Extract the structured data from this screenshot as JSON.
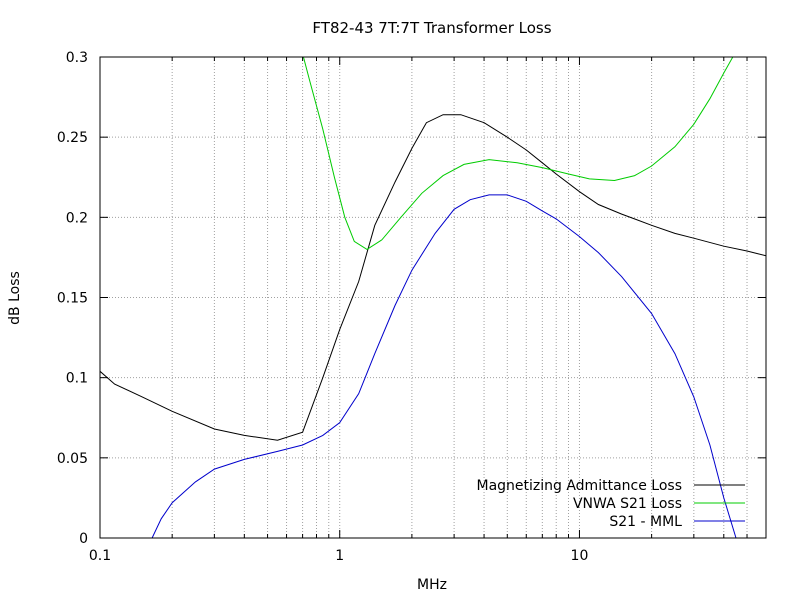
{
  "chart_data": {
    "type": "line",
    "title": "FT82-43 7T:7T Transformer Loss",
    "xlabel": "MHz",
    "ylabel": "dB Loss",
    "xscale": "log",
    "xlim": [
      0.1,
      60
    ],
    "ylim": [
      0,
      0.3
    ],
    "grid": true,
    "legend_position": "bottom-right",
    "x_ticks": [
      {
        "value": 0.1,
        "label": "0.1"
      },
      {
        "value": 1,
        "label": "1"
      },
      {
        "value": 10,
        "label": "10"
      }
    ],
    "y_ticks": [
      {
        "value": 0,
        "label": "0"
      },
      {
        "value": 0.05,
        "label": "0.05"
      },
      {
        "value": 0.1,
        "label": "0.1"
      },
      {
        "value": 0.15,
        "label": "0.15"
      },
      {
        "value": 0.2,
        "label": "0.2"
      },
      {
        "value": 0.25,
        "label": "0.25"
      },
      {
        "value": 0.3,
        "label": "0.3"
      }
    ],
    "series": [
      {
        "name": "Magnetizing Admittance Loss",
        "color": "#000000",
        "points": [
          [
            0.1,
            0.104
          ],
          [
            0.115,
            0.096
          ],
          [
            0.15,
            0.088
          ],
          [
            0.2,
            0.079
          ],
          [
            0.3,
            0.068
          ],
          [
            0.4,
            0.064
          ],
          [
            0.55,
            0.061
          ],
          [
            0.7,
            0.066
          ],
          [
            0.85,
            0.1
          ],
          [
            1.0,
            0.13
          ],
          [
            1.2,
            0.16
          ],
          [
            1.4,
            0.195
          ],
          [
            1.7,
            0.222
          ],
          [
            2.0,
            0.243
          ],
          [
            2.3,
            0.259
          ],
          [
            2.7,
            0.264
          ],
          [
            3.2,
            0.264
          ],
          [
            4.0,
            0.259
          ],
          [
            5.0,
            0.25
          ],
          [
            6.0,
            0.242
          ],
          [
            7.0,
            0.234
          ],
          [
            8.0,
            0.227
          ],
          [
            10.0,
            0.216
          ],
          [
            12.0,
            0.208
          ],
          [
            15.0,
            0.202
          ],
          [
            20.0,
            0.195
          ],
          [
            25.0,
            0.19
          ],
          [
            30.0,
            0.187
          ],
          [
            40.0,
            0.182
          ],
          [
            50.0,
            0.179
          ],
          [
            60.0,
            0.176
          ]
        ]
      },
      {
        "name": "VNWA S21 Loss",
        "color": "#00cc00",
        "points": [
          [
            0.7,
            0.302
          ],
          [
            0.75,
            0.285
          ],
          [
            0.85,
            0.255
          ],
          [
            0.95,
            0.225
          ],
          [
            1.05,
            0.2
          ],
          [
            1.15,
            0.185
          ],
          [
            1.3,
            0.18
          ],
          [
            1.5,
            0.186
          ],
          [
            1.8,
            0.2
          ],
          [
            2.2,
            0.215
          ],
          [
            2.7,
            0.226
          ],
          [
            3.3,
            0.233
          ],
          [
            4.2,
            0.236
          ],
          [
            5.5,
            0.234
          ],
          [
            7.0,
            0.231
          ],
          [
            9.0,
            0.227
          ],
          [
            11.0,
            0.224
          ],
          [
            14.0,
            0.223
          ],
          [
            17.0,
            0.226
          ],
          [
            20.0,
            0.232
          ],
          [
            25.0,
            0.244
          ],
          [
            30.0,
            0.258
          ],
          [
            35.0,
            0.274
          ],
          [
            40.0,
            0.29
          ],
          [
            44.0,
            0.301
          ]
        ]
      },
      {
        "name": "S21 - MML",
        "color": "#0000cc",
        "points": [
          [
            0.165,
            0.0
          ],
          [
            0.18,
            0.012
          ],
          [
            0.2,
            0.022
          ],
          [
            0.25,
            0.035
          ],
          [
            0.3,
            0.043
          ],
          [
            0.4,
            0.049
          ],
          [
            0.55,
            0.054
          ],
          [
            0.7,
            0.058
          ],
          [
            0.85,
            0.064
          ],
          [
            1.0,
            0.072
          ],
          [
            1.2,
            0.09
          ],
          [
            1.4,
            0.115
          ],
          [
            1.7,
            0.145
          ],
          [
            2.0,
            0.167
          ],
          [
            2.5,
            0.19
          ],
          [
            3.0,
            0.205
          ],
          [
            3.5,
            0.211
          ],
          [
            4.2,
            0.214
          ],
          [
            5.0,
            0.214
          ],
          [
            6.0,
            0.21
          ],
          [
            7.0,
            0.204
          ],
          [
            8.0,
            0.199
          ],
          [
            10.0,
            0.188
          ],
          [
            12.0,
            0.178
          ],
          [
            15.0,
            0.163
          ],
          [
            20.0,
            0.14
          ],
          [
            25.0,
            0.115
          ],
          [
            30.0,
            0.088
          ],
          [
            35.0,
            0.058
          ],
          [
            40.0,
            0.025
          ],
          [
            45.0,
            0.0
          ]
        ]
      }
    ]
  }
}
